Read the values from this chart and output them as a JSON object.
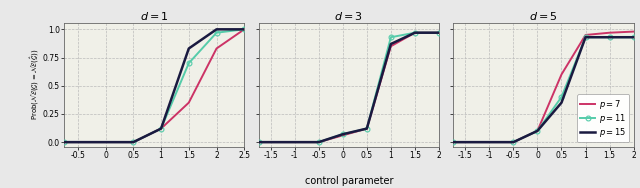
{
  "panels": [
    {
      "title": "$d=1$",
      "xlim": [
        -0.75,
        2.5
      ],
      "xticks": [
        -0.5,
        0,
        0.5,
        1.0,
        1.5,
        2.0,
        2.5
      ],
      "xtick_labels": [
        "-0.5",
        "0",
        "0.5",
        "1",
        "1.5",
        "2",
        "2.5"
      ],
      "series": [
        {
          "label": "p=7",
          "color": "#cc3366",
          "marker": "None",
          "lw": 1.4,
          "x": [
            -0.75,
            0.5,
            0.5,
            1.0,
            1.5,
            2.0,
            2.5
          ],
          "y": [
            0.0,
            0.0,
            0.0,
            0.12,
            0.35,
            0.83,
            1.0
          ]
        },
        {
          "label": "p=11",
          "color": "#55ccaa",
          "marker": "o",
          "lw": 1.4,
          "x": [
            -0.75,
            0.5,
            1.0,
            1.5,
            2.0,
            2.5
          ],
          "y": [
            0.0,
            0.0,
            0.12,
            0.7,
            0.97,
            1.0
          ]
        },
        {
          "label": "p=15",
          "color": "#1a1a40",
          "marker": "None",
          "lw": 1.8,
          "x": [
            -0.75,
            0.5,
            1.0,
            1.5,
            2.0,
            2.5
          ],
          "y": [
            0.0,
            0.0,
            0.12,
            0.83,
            1.0,
            1.0
          ]
        }
      ]
    },
    {
      "title": "$d=3$",
      "xlim": [
        -1.75,
        2.0
      ],
      "xticks": [
        -1.5,
        -1.0,
        -0.5,
        0.0,
        0.5,
        1.0,
        1.5,
        2.0
      ],
      "xtick_labels": [
        "-1.5",
        "-1",
        "-0.5",
        "0",
        "0.5",
        "1",
        "1.5",
        "2"
      ],
      "series": [
        {
          "label": "p=7",
          "color": "#cc3366",
          "marker": "None",
          "lw": 1.4,
          "x": [
            -1.75,
            -0.5,
            0.0,
            0.5,
            1.0,
            1.5,
            2.0
          ],
          "y": [
            0.0,
            0.0,
            0.06,
            0.12,
            0.85,
            0.97,
            0.97
          ]
        },
        {
          "label": "p=11",
          "color": "#55ccaa",
          "marker": "o",
          "lw": 1.4,
          "x": [
            -1.75,
            -0.5,
            0.0,
            0.5,
            1.0,
            1.5,
            2.0
          ],
          "y": [
            0.0,
            0.0,
            0.07,
            0.12,
            0.93,
            0.97,
            0.97
          ]
        },
        {
          "label": "p=15",
          "color": "#1a1a40",
          "marker": "None",
          "lw": 1.8,
          "x": [
            -1.75,
            -0.5,
            0.0,
            0.5,
            1.0,
            1.5,
            2.0
          ],
          "y": [
            0.0,
            0.0,
            0.07,
            0.12,
            0.87,
            0.97,
            0.97
          ]
        }
      ]
    },
    {
      "title": "$d=5$",
      "xlim": [
        -1.75,
        2.0
      ],
      "xticks": [
        -1.5,
        -1.0,
        -0.5,
        0.0,
        0.5,
        1.0,
        1.5,
        2.0
      ],
      "xtick_labels": [
        "-1.5",
        "-1",
        "-0.5",
        "0",
        "0.5",
        "1",
        "1.5",
        "2"
      ],
      "series": [
        {
          "label": "p=7",
          "color": "#cc3366",
          "marker": "None",
          "lw": 1.4,
          "x": [
            -1.75,
            -0.5,
            0.0,
            0.5,
            1.0,
            1.5,
            2.0
          ],
          "y": [
            0.0,
            0.0,
            0.1,
            0.6,
            0.95,
            0.97,
            0.98
          ]
        },
        {
          "label": "p=11",
          "color": "#55ccaa",
          "marker": "o",
          "lw": 1.4,
          "x": [
            -1.75,
            -0.5,
            0.0,
            0.5,
            1.0,
            1.5,
            2.0
          ],
          "y": [
            0.0,
            0.0,
            0.1,
            0.4,
            0.93,
            0.93,
            0.93
          ]
        },
        {
          "label": "p=15",
          "color": "#1a1a40",
          "marker": "None",
          "lw": 1.8,
          "x": [
            -1.75,
            -0.5,
            0.0,
            0.5,
            1.0,
            1.5,
            2.0
          ],
          "y": [
            0.0,
            0.0,
            0.1,
            0.35,
            0.93,
            0.93,
            0.93
          ]
        }
      ]
    }
  ],
  "ylabel": "Prob($\\mathcal{NE}(\\mathcal{G}) = \\mathcal{NE}(\\hat{\\mathcal{G}})$)",
  "xlabel": "control parameter",
  "yticks": [
    0.0,
    0.25,
    0.5,
    0.75,
    1.0
  ],
  "ytick_labels": [
    "0.0",
    "0.25",
    "0.5",
    "0.75",
    "1.0"
  ],
  "ylim": [
    -0.04,
    1.06
  ],
  "legend_labels": [
    "$p=7$",
    "$p=11$",
    "$p=15$"
  ],
  "legend_colors": [
    "#cc3366",
    "#55ccaa",
    "#1a1a40"
  ],
  "bg_color": "#e8e8e8",
  "plot_bg": "#f0f0e8",
  "grid_color": "#bbbbbb"
}
